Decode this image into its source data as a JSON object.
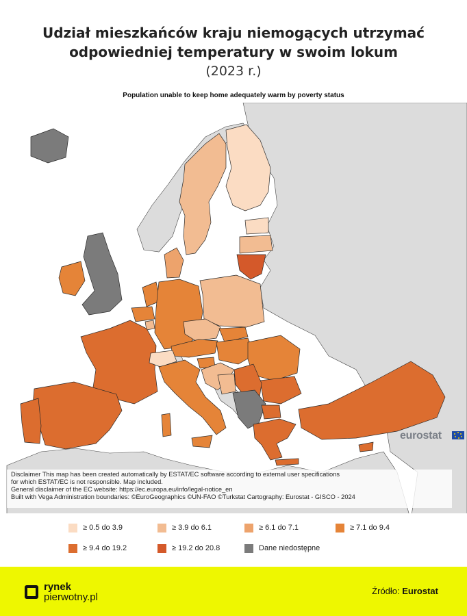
{
  "header": {
    "title_line1": "Udział mieszkańców kraju niemogących utrzymać",
    "title_line2": "odpowiedniej temperatury w swoim lokum",
    "title_line3": "(2023 r.)",
    "subtitle": "Population unable to keep home adequately warm by poverty status"
  },
  "disclaimer": {
    "line1": "Disclaimer This map has been created automatically by ESTAT/EC software according to external user specifications",
    "line2": "for which ESTAT/EC is not responsible. Map included.",
    "line3": "General disclaimer of the EC website: https://ec.europa.eu/info/legal-notice_en",
    "line4": "Built with Vega Administration boundaries: ©EuroGeographics ©UN-FAO ©Turkstat Cartography: Eurostat - GISCO - 2024"
  },
  "brand": {
    "eurostat_label": "eurostat",
    "logo_line1": "rynek",
    "logo_line2": "pierwotny.pl",
    "source_prefix": "Źródło:",
    "source_name": "Eurostat"
  },
  "legend": [
    {
      "label": "≥ 0.5 do 3.9",
      "color": "#fbdcc3"
    },
    {
      "label": "≥ 3.9 do 6.1",
      "color": "#f2bc92"
    },
    {
      "label": "≥ 6.1 do 7.1",
      "color": "#eda36c"
    },
    {
      "label": "≥ 7.1 do 9.4",
      "color": "#e58438"
    },
    {
      "label": "≥ 9.4 do 19.2",
      "color": "#dc6d2f"
    },
    {
      "label": "≥ 19.2 do 20.8",
      "color": "#d4592a"
    },
    {
      "label": "Dane niedostępne",
      "color": "#7b7b7b"
    }
  ],
  "map_colors": {
    "sea": "#ffffff",
    "non_eu_land": "#dcdcdc",
    "border": "#2a2a2a"
  }
}
